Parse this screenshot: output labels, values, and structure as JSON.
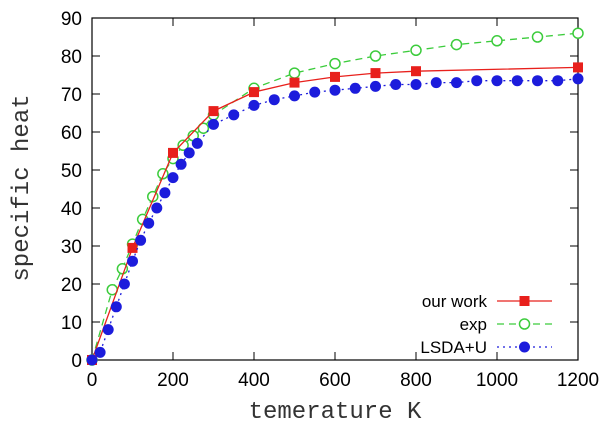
{
  "chart_data": {
    "type": "line",
    "title": "",
    "xlabel": "temerature K",
    "ylabel": "specific heat",
    "xlim": [
      0,
      1200
    ],
    "ylim": [
      0,
      90
    ],
    "xticks": [
      0,
      200,
      400,
      600,
      800,
      1000,
      1200
    ],
    "yticks": [
      0,
      10,
      20,
      30,
      40,
      50,
      60,
      70,
      80,
      90
    ],
    "grid": false,
    "legend_position": "bottom-right",
    "series": [
      {
        "name": "our work",
        "color": "#e8201c",
        "marker": "filled-square",
        "line": "solid",
        "x": [
          0,
          100,
          200,
          300,
          400,
          500,
          600,
          700,
          800,
          1200
        ],
        "y": [
          0,
          29.5,
          54.5,
          65.5,
          70.5,
          73,
          74.5,
          75.5,
          76,
          77
        ]
      },
      {
        "name": "exp",
        "color": "#3ccc3c",
        "marker": "open-circle",
        "line": "dashed",
        "x": [
          0,
          50,
          75,
          100,
          125,
          150,
          175,
          200,
          225,
          250,
          275,
          300,
          400,
          500,
          600,
          700,
          800,
          900,
          1000,
          1100,
          1200
        ],
        "y": [
          0,
          18.5,
          24,
          30.5,
          37,
          43,
          49,
          53,
          56.5,
          59,
          61,
          64.5,
          71.5,
          75.5,
          78,
          80,
          81.5,
          83,
          84,
          85,
          86
        ]
      },
      {
        "name": "LSDA+U",
        "color": "#1c1cdc",
        "marker": "filled-circle",
        "line": "dotted",
        "x": [
          0,
          20,
          40,
          60,
          80,
          100,
          120,
          140,
          160,
          180,
          200,
          220,
          240,
          260,
          300,
          350,
          400,
          450,
          500,
          550,
          600,
          650,
          700,
          750,
          800,
          850,
          900,
          950,
          1000,
          1050,
          1100,
          1150,
          1200
        ],
        "y": [
          0,
          2,
          8,
          14,
          20,
          26,
          31.5,
          36,
          40,
          44,
          48,
          51.5,
          54.5,
          57,
          62,
          64.5,
          67,
          68.5,
          69.5,
          70.5,
          71,
          71.5,
          72,
          72.5,
          72.5,
          73,
          73,
          73.5,
          73.5,
          73.5,
          73.5,
          73.5,
          74
        ]
      }
    ]
  }
}
